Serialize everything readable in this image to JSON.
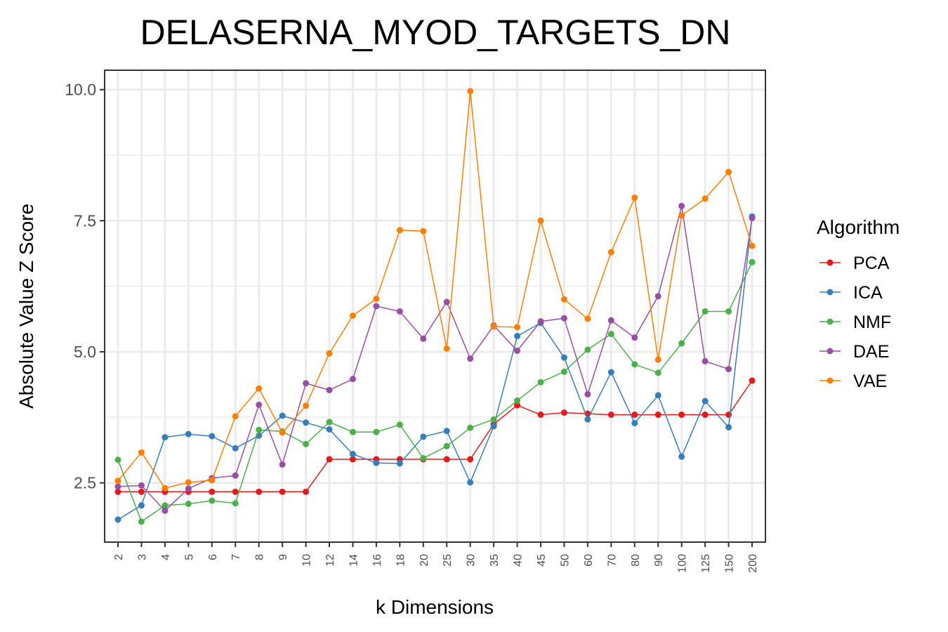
{
  "chart_data": {
    "type": "line",
    "title": "DELASERNA_MYOD_TARGETS_DN",
    "xlabel": "k Dimensions",
    "ylabel": "Absolute Value Z Score",
    "categories": [
      "2",
      "3",
      "4",
      "5",
      "6",
      "7",
      "8",
      "9",
      "10",
      "12",
      "14",
      "16",
      "18",
      "20",
      "25",
      "30",
      "35",
      "40",
      "45",
      "50",
      "60",
      "70",
      "80",
      "90",
      "100",
      "125",
      "150",
      "200"
    ],
    "ylim": [
      1.37,
      10.37
    ],
    "yticks": [
      2.5,
      5.0,
      7.5,
      10.0
    ],
    "ytick_labels": [
      "2.5",
      "5.0",
      "7.5",
      "10.0"
    ],
    "grid": true,
    "legend": {
      "title": "Algorithm",
      "position": "right"
    },
    "series": [
      {
        "name": "PCA",
        "color": "#e41a1c",
        "values": [
          2.33,
          2.33,
          2.33,
          2.33,
          2.33,
          2.33,
          2.33,
          2.33,
          2.33,
          2.95,
          2.95,
          2.95,
          2.95,
          2.95,
          2.95,
          2.95,
          3.62,
          3.98,
          3.8,
          3.84,
          3.82,
          3.8,
          3.8,
          3.8,
          3.8,
          3.8,
          3.8,
          4.45
        ]
      },
      {
        "name": "ICA",
        "color": "#377eb8",
        "values": [
          1.8,
          2.07,
          3.37,
          3.43,
          3.39,
          3.16,
          3.4,
          3.78,
          3.65,
          3.52,
          3.05,
          2.88,
          2.87,
          3.38,
          3.49,
          2.51,
          3.58,
          5.3,
          5.55,
          4.89,
          3.71,
          4.61,
          3.64,
          4.17,
          3.0,
          4.06,
          3.56,
          7.58
        ]
      },
      {
        "name": "NMF",
        "color": "#4daf4a",
        "values": [
          2.94,
          1.76,
          2.07,
          2.1,
          2.16,
          2.11,
          3.51,
          3.48,
          3.24,
          3.66,
          3.47,
          3.47,
          3.61,
          2.97,
          3.2,
          3.55,
          3.71,
          4.07,
          4.42,
          4.62,
          5.04,
          5.34,
          4.76,
          4.6,
          5.16,
          5.77,
          5.77,
          6.71
        ]
      },
      {
        "name": "DAE",
        "color": "#984ea3",
        "values": [
          2.43,
          2.45,
          1.97,
          2.39,
          2.59,
          2.64,
          3.99,
          2.85,
          4.4,
          4.27,
          4.48,
          5.87,
          5.77,
          5.25,
          5.95,
          4.87,
          5.5,
          5.02,
          5.58,
          5.64,
          4.19,
          5.6,
          5.27,
          6.06,
          7.78,
          4.82,
          4.67,
          7.55
        ]
      },
      {
        "name": "VAE",
        "color": "#ff7f00",
        "values": [
          2.54,
          3.08,
          2.4,
          2.51,
          2.55,
          3.77,
          4.3,
          3.46,
          3.97,
          4.97,
          5.69,
          6.01,
          7.32,
          7.3,
          5.06,
          9.97,
          5.48,
          5.47,
          7.5,
          6.0,
          5.63,
          6.9,
          7.94,
          4.85,
          7.6,
          7.92,
          8.43,
          7.02
        ]
      }
    ]
  }
}
